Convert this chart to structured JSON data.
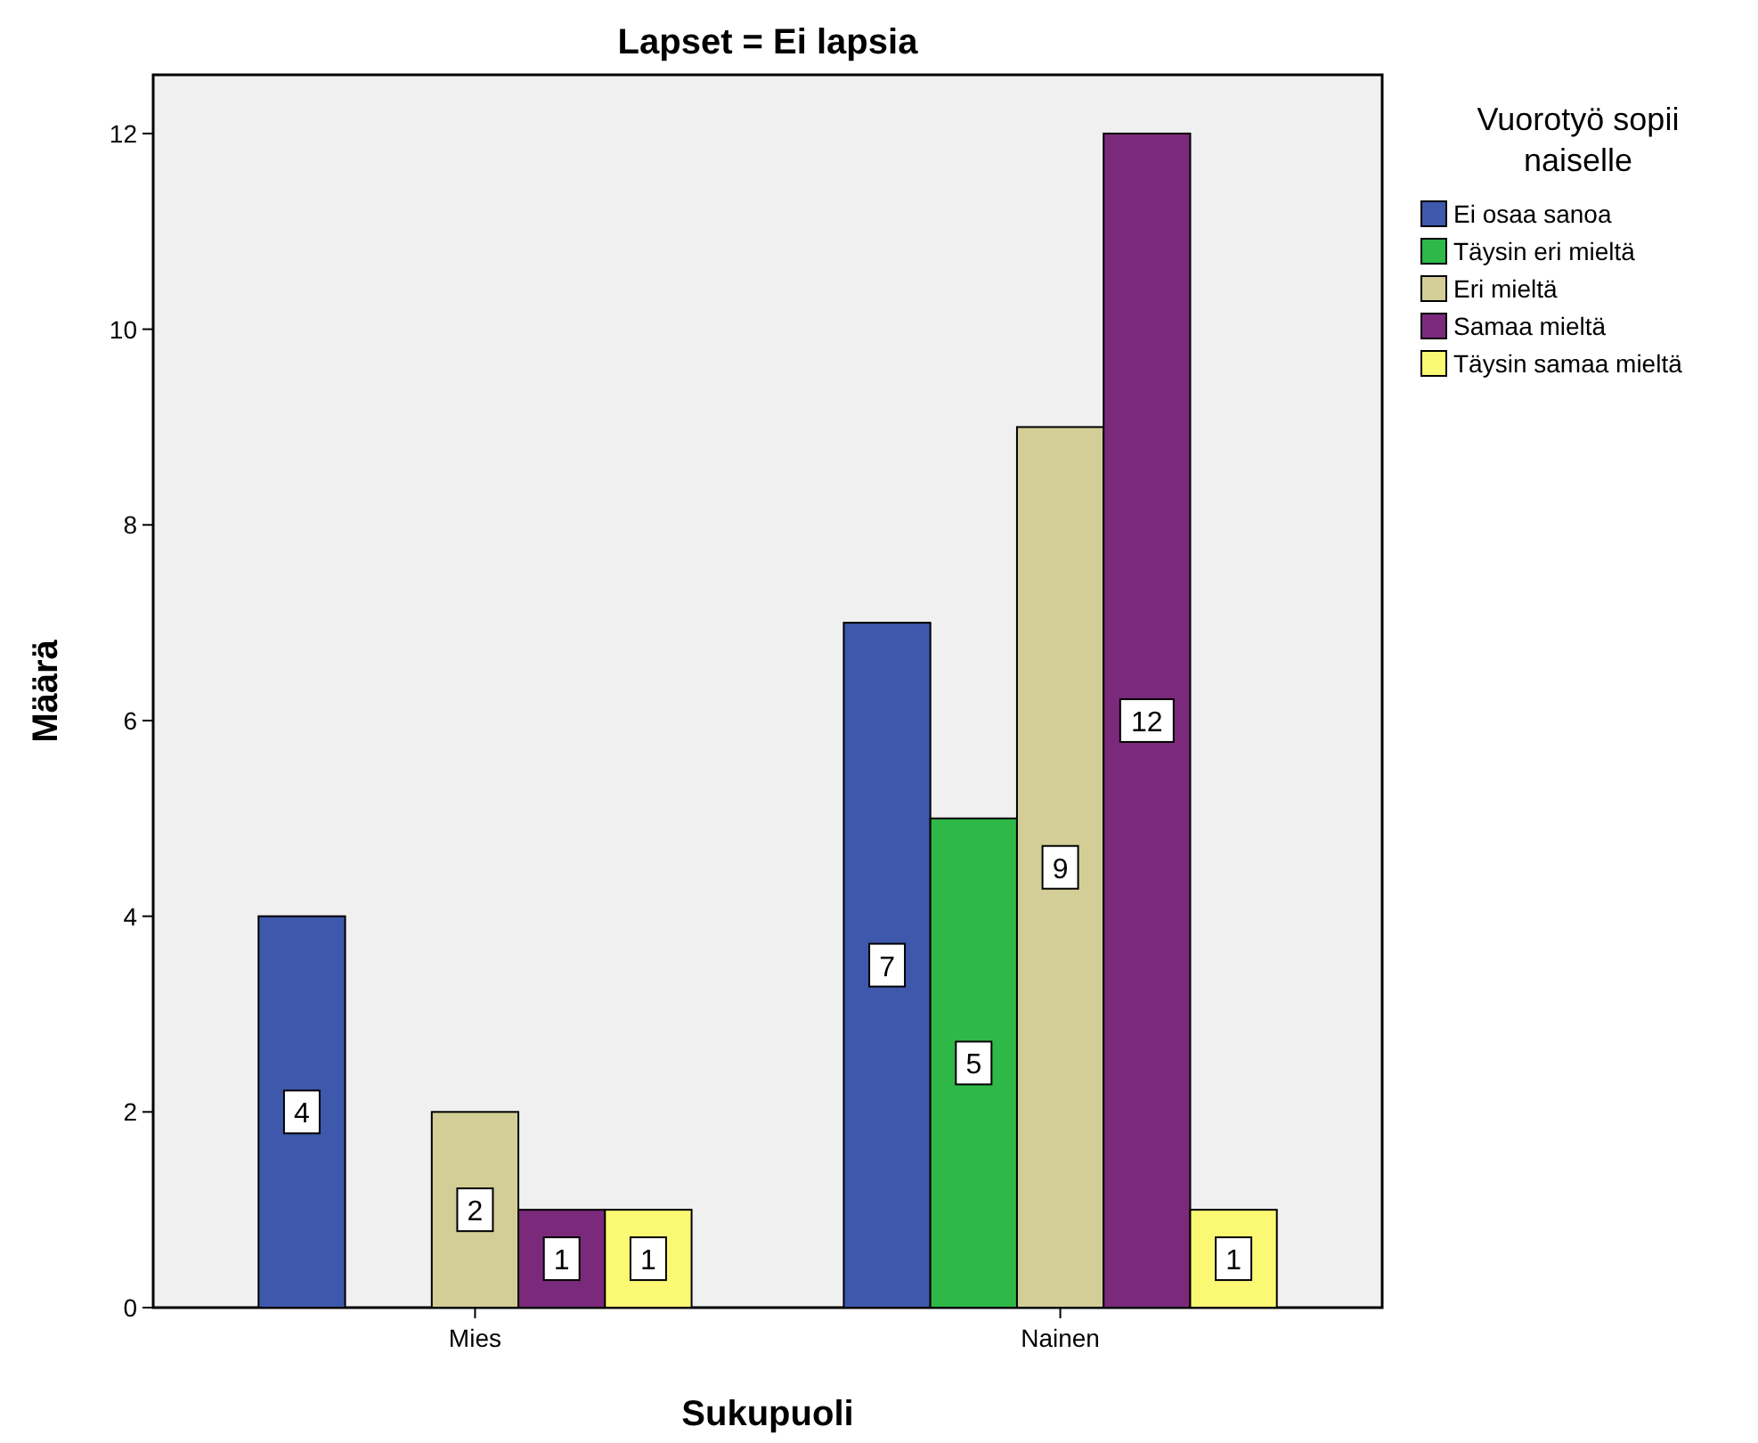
{
  "chart_data": {
    "type": "bar",
    "title": "Lapset = Ei lapsia",
    "xlabel": "Sukupuoli",
    "ylabel": "Määrä",
    "legend_title": "Vuorotyö sopii naiselle",
    "categories": [
      "Mies",
      "Nainen"
    ],
    "series": [
      {
        "name": "Ei osaa sanoa",
        "color": "#3e58ac",
        "values": [
          4,
          7
        ]
      },
      {
        "name": "Täysin eri mieltä",
        "color": "#2eb848",
        "values": [
          null,
          5
        ]
      },
      {
        "name": "Eri mieltä",
        "color": "#d3ce97",
        "values": [
          2,
          9
        ]
      },
      {
        "name": "Samaa mieltä",
        "color": "#7b2a7b",
        "values": [
          1,
          12
        ]
      },
      {
        "name": "Täysin samaa mieltä",
        "color": "#fbf873",
        "values": [
          1,
          1
        ]
      }
    ],
    "ylim": [
      0,
      12.6
    ],
    "yticks": [
      0,
      2,
      4,
      6,
      8,
      10,
      12
    ],
    "grid": false,
    "legend": "top right",
    "data_labels": true
  }
}
